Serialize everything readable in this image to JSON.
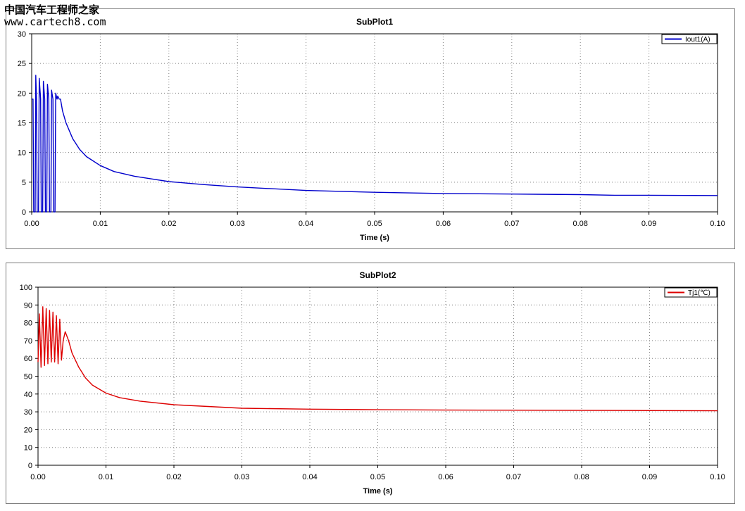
{
  "watermark": {
    "name": "中国汽车工程师之家",
    "url": "www.cartech8.com"
  },
  "chart_data": [
    {
      "type": "line",
      "title": "SubPlot1",
      "xlabel": "Time (s)",
      "ylabel": "",
      "xlim": [
        0,
        0.1
      ],
      "ylim": [
        0,
        30
      ],
      "xticks": [
        0,
        0.01,
        0.02,
        0.03,
        0.04,
        0.05,
        0.06,
        0.07,
        0.08,
        0.09,
        0.1
      ],
      "xtick_labels": [
        "0.00",
        "0.01",
        "0.02",
        "0.03",
        "0.04",
        "0.05",
        "0.06",
        "0.07",
        "0.08",
        "0.09",
        "0.10"
      ],
      "yticks": [
        0,
        5,
        10,
        15,
        20,
        25,
        30
      ],
      "grid": true,
      "legend_position": "top-right",
      "series": [
        {
          "name": "Iout1(A)",
          "color": "#0000cc",
          "x": [
            0,
            0.0002,
            0.0003,
            0.0005,
            0.0006,
            0.0007,
            0.0008,
            0.001,
            0.0011,
            0.0013,
            0.0014,
            0.0016,
            0.0017,
            0.0019,
            0.002,
            0.0022,
            0.0023,
            0.0025,
            0.0026,
            0.0028,
            0.0029,
            0.0031,
            0.0032,
            0.0034,
            0.0035,
            0.0037,
            0.0038,
            0.004,
            0.0042,
            0.0045,
            0.005,
            0.006,
            0.007,
            0.008,
            0.01,
            0.012,
            0.015,
            0.02,
            0.025,
            0.03,
            0.035,
            0.04,
            0.05,
            0.06,
            0.07,
            0.08,
            0.085,
            0.09,
            0.1
          ],
          "y": [
            19,
            19,
            0,
            0,
            23,
            19,
            0,
            0,
            22.5,
            19,
            0,
            0,
            22,
            19,
            0,
            0,
            21.5,
            19,
            0,
            0,
            20.5,
            19,
            0,
            0,
            20,
            19,
            19.5,
            19,
            19,
            17,
            15,
            12.3,
            10.5,
            9.3,
            7.8,
            6.8,
            6,
            5.1,
            4.6,
            4.2,
            3.9,
            3.6,
            3.3,
            3.1,
            3,
            2.9,
            2.8,
            2.8,
            2.75
          ]
        }
      ]
    },
    {
      "type": "line",
      "title": "SubPlot2",
      "xlabel": "Time (s)",
      "ylabel": "",
      "xlim": [
        0,
        0.1
      ],
      "ylim": [
        0,
        100
      ],
      "xticks": [
        0,
        0.01,
        0.02,
        0.03,
        0.04,
        0.05,
        0.06,
        0.07,
        0.08,
        0.09,
        0.1
      ],
      "xtick_labels": [
        "0.00",
        "0.01",
        "0.02",
        "0.03",
        "0.04",
        "0.05",
        "0.06",
        "0.07",
        "0.08",
        "0.09",
        "0.10"
      ],
      "yticks": [
        0,
        10,
        20,
        30,
        40,
        50,
        60,
        70,
        80,
        90,
        100
      ],
      "grid": true,
      "legend_position": "top-right",
      "series": [
        {
          "name": "Tj1(℃)",
          "color": "#dd0000",
          "x": [
            0,
            0.0002,
            0.00045,
            0.0007,
            0.00095,
            0.0012,
            0.00145,
            0.0017,
            0.00195,
            0.0022,
            0.00245,
            0.0027,
            0.00295,
            0.0032,
            0.00345,
            0.0037,
            0.004,
            0.0045,
            0.005,
            0.006,
            0.007,
            0.008,
            0.01,
            0.012,
            0.015,
            0.02,
            0.025,
            0.03,
            0.04,
            0.05,
            0.06,
            0.07,
            0.08,
            0.09,
            0.1
          ],
          "y": [
            58,
            85,
            55,
            89,
            56,
            88,
            57,
            87,
            58,
            86,
            58,
            84,
            57,
            82,
            59,
            70,
            75,
            70,
            63,
            55,
            49,
            45,
            40.5,
            38,
            36,
            34,
            33,
            32,
            31.5,
            31.2,
            31,
            30.9,
            30.8,
            30.7,
            30.6
          ]
        }
      ]
    }
  ]
}
